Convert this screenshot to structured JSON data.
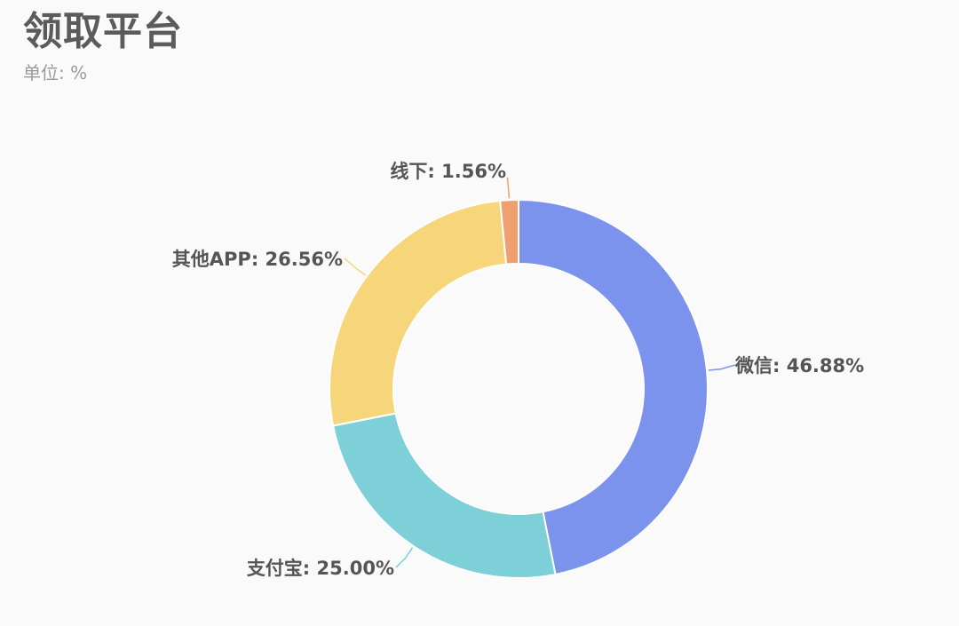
{
  "header": {
    "title": "领取平台",
    "subtitle": "单位: %"
  },
  "chart_data": {
    "type": "pie",
    "donut": true,
    "title": "领取平台",
    "unit": "%",
    "categories": [
      "微信",
      "支付宝",
      "其他APP",
      "线下"
    ],
    "values": [
      46.88,
      25.0,
      26.56,
      1.56
    ],
    "labels": [
      "微信: 46.88%",
      "支付宝: 25.00%",
      "其他APP: 26.56%",
      "线下: 1.56%"
    ],
    "colors": [
      "#7b93ec",
      "#7dcfd8",
      "#f7d67b",
      "#f0a070"
    ],
    "legend": "none"
  }
}
